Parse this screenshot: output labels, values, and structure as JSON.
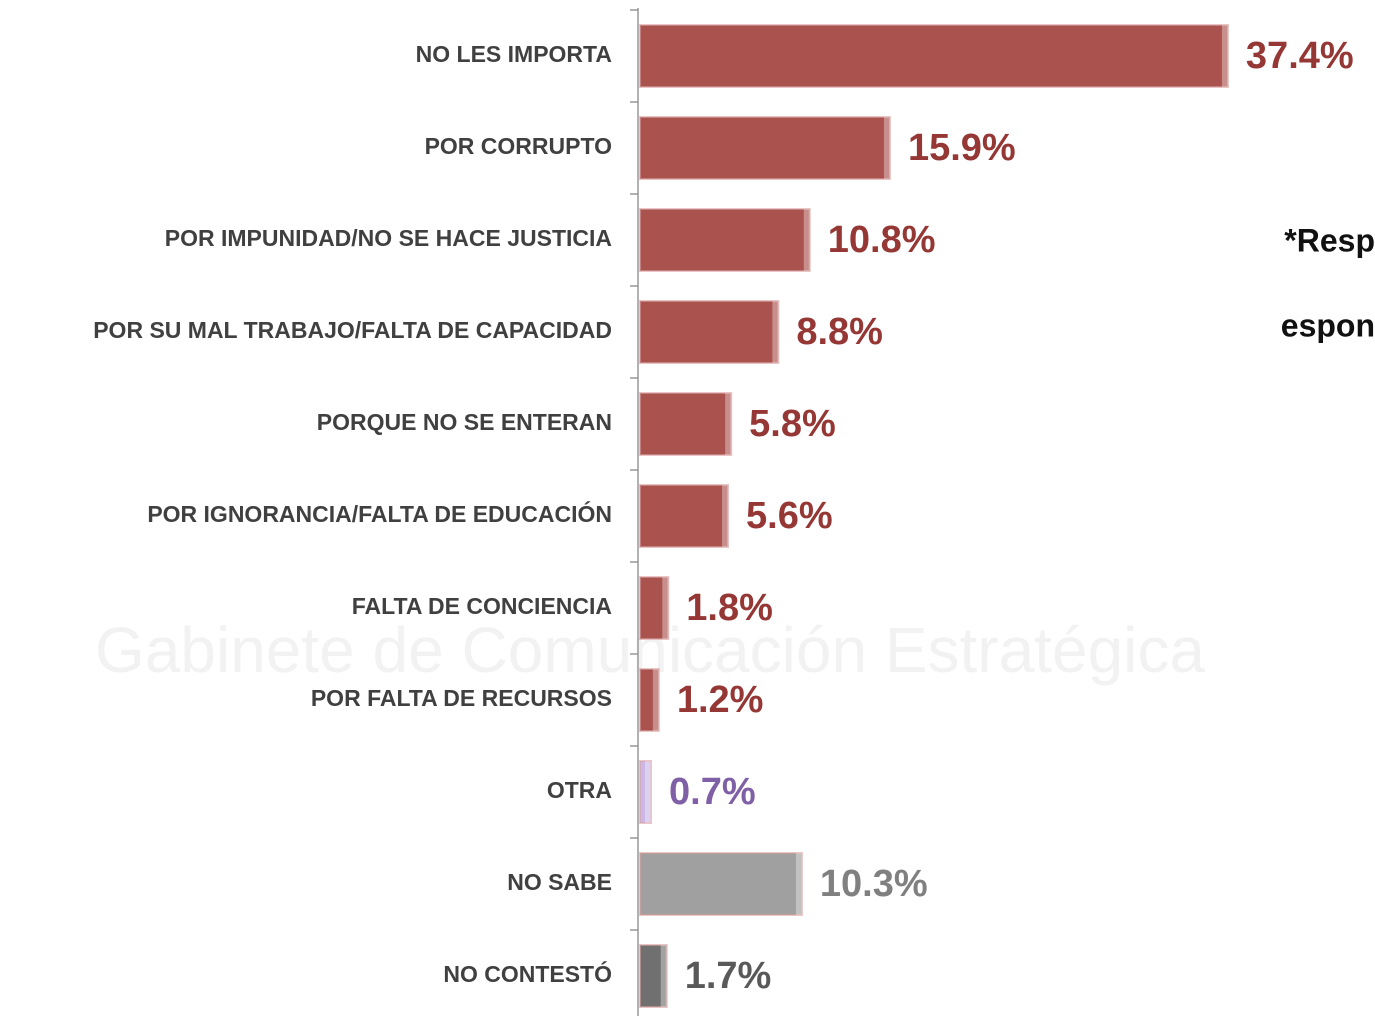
{
  "chart_data": {
    "type": "bar",
    "orientation": "horizontal",
    "categories": [
      "NO LES IMPORTA",
      "POR CORRUPTO",
      "POR IMPUNIDAD/NO SE HACE JUSTICIA",
      "POR SU MAL TRABAJO/FALTA DE CAPACIDAD",
      "PORQUE NO SE ENTERAN",
      "POR IGNORANCIA/FALTA DE EDUCACIÓN",
      "FALTA DE CONCIENCIA",
      "POR FALTA DE RECURSOS",
      "OTRA",
      "NO SABE",
      "NO CONTESTÓ"
    ],
    "values": [
      37.4,
      15.9,
      10.8,
      8.8,
      5.8,
      5.6,
      1.8,
      1.2,
      0.7,
      10.3,
      1.7
    ],
    "value_labels": [
      "37.4%",
      "15.9%",
      "10.8%",
      "8.8%",
      "5.8%",
      "5.6%",
      "1.8%",
      "1.2%",
      "0.7%",
      "10.3%",
      "1.7%"
    ],
    "colors": [
      "#a9524e",
      "#a9524e",
      "#a9524e",
      "#a9524e",
      "#a9524e",
      "#a9524e",
      "#a9524e",
      "#a9524e",
      "#ccb8e6",
      "#a0a0a0",
      "#707070"
    ],
    "label_colors": [
      "#953734",
      "#953734",
      "#953734",
      "#953734",
      "#953734",
      "#953734",
      "#953734",
      "#953734",
      "#7f5fa6",
      "#808080",
      "#595959"
    ],
    "annotations": [
      "*Resp",
      "espon"
    ],
    "watermark": "Gabinete de Comunicación Estratégica"
  }
}
